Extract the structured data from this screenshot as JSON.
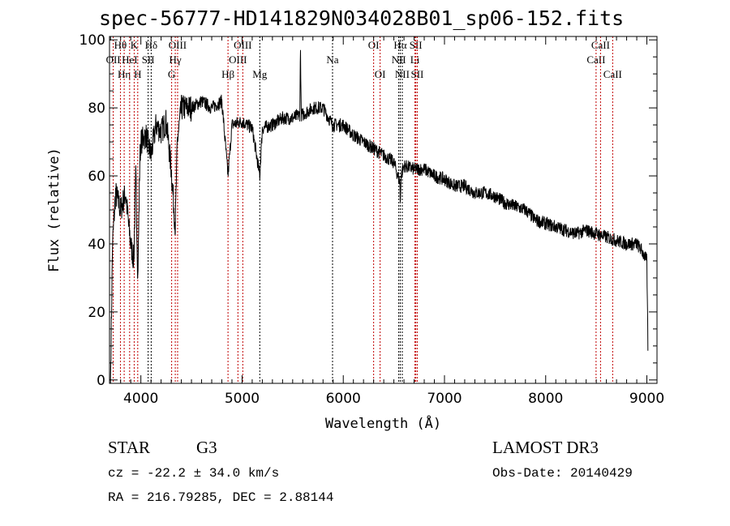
{
  "chart_data": {
    "type": "line",
    "title": "spec-56777-HD141829N034028B01_sp06-152.fits",
    "xlabel": "Wavelength (Å)",
    "ylabel": "Flux (relative)",
    "xlim": [
      3690,
      9100
    ],
    "ylim": [
      -1,
      101
    ],
    "xticks": [
      4000,
      5000,
      6000,
      7000,
      8000,
      9000
    ],
    "yticks": [
      0,
      20,
      40,
      60,
      80,
      100
    ],
    "series": [
      {
        "name": "spectrum",
        "x": [
          3690,
          3700,
          3710,
          3720,
          3750,
          3800,
          3850,
          3880,
          3900,
          3930,
          3950,
          3970,
          3990,
          4000,
          4050,
          4100,
          4150,
          4200,
          4250,
          4300,
          4340,
          4360,
          4400,
          4500,
          4600,
          4700,
          4800,
          4861,
          4900,
          5000,
          5100,
          5175,
          5200,
          5300,
          5400,
          5500,
          5570,
          5577,
          5585,
          5600,
          5700,
          5800,
          5894,
          6000,
          6100,
          6200,
          6300,
          6400,
          6500,
          6560,
          6563,
          6570,
          6600,
          6700,
          6800,
          6900,
          7000,
          7100,
          7200,
          7300,
          7400,
          7500,
          7600,
          7700,
          7800,
          7900,
          8000,
          8100,
          8200,
          8300,
          8400,
          8500,
          8600,
          8700,
          8800,
          8900,
          8950,
          9000,
          9010
        ],
        "y": [
          0,
          0,
          20,
          40,
          55,
          50,
          55,
          45,
          40,
          35,
          60,
          30,
          65,
          70,
          72,
          66,
          75,
          73,
          76,
          62,
          45,
          70,
          80,
          80,
          82,
          80,
          82,
          60,
          75,
          76,
          74,
          60,
          74,
          75,
          77,
          77,
          78,
          98,
          78,
          78,
          80,
          80,
          75,
          75,
          72,
          70,
          68,
          66,
          64,
          58,
          50,
          60,
          63,
          62,
          62,
          60,
          59,
          57,
          57,
          55,
          55,
          54,
          52,
          51,
          50,
          47,
          46,
          45,
          44,
          43,
          44,
          43,
          42,
          41,
          40,
          40,
          38,
          35,
          10
        ]
      }
    ],
    "lines": [
      {
        "label": "OII",
        "w": 3727,
        "row": 2,
        "color": "#c00000"
      },
      {
        "label": "Hθ",
        "w": 3798,
        "row": 1,
        "color": "#c00000"
      },
      {
        "label": "Hη",
        "w": 3835,
        "row": 3,
        "color": "#c00000"
      },
      {
        "label": "HeI",
        "w": 3889,
        "row": 2,
        "color": "#c00000"
      },
      {
        "label": "K",
        "w": 3934,
        "row": 1,
        "color": "#c00000"
      },
      {
        "label": "H",
        "w": 3969,
        "row": 3,
        "color": "#c00000"
      },
      {
        "label": "SII",
        "w": 4072,
        "row": 2,
        "color": "#000000"
      },
      {
        "label": "Hδ",
        "w": 4102,
        "row": 1,
        "color": "#000000"
      },
      {
        "label": "G",
        "w": 4304,
        "row": 3,
        "color": "#c00000"
      },
      {
        "label": "Hγ",
        "w": 4340,
        "row": 2,
        "color": "#c00000"
      },
      {
        "label": "OIII",
        "w": 4363,
        "row": 1,
        "color": "#c00000"
      },
      {
        "label": "Hβ",
        "w": 4861,
        "row": 3,
        "color": "#c00000"
      },
      {
        "label": "OIII",
        "w": 4959,
        "row": 2,
        "color": "#c00000"
      },
      {
        "label": "OIII",
        "w": 5007,
        "row": 1,
        "color": "#c00000"
      },
      {
        "label": "Mg",
        "w": 5175,
        "row": 3,
        "color": "#000000"
      },
      {
        "label": "Na",
        "w": 5894,
        "row": 2,
        "color": "#000000"
      },
      {
        "label": "OI",
        "w": 6300,
        "row": 1,
        "color": "#c00000"
      },
      {
        "label": "OI",
        "w": 6364,
        "row": 3,
        "color": "#c00000"
      },
      {
        "label": "NII",
        "w": 6548,
        "row": 2,
        "color": "#000000"
      },
      {
        "label": "Hα",
        "w": 6563,
        "row": 1,
        "color": "#000000"
      },
      {
        "label": "NII",
        "w": 6583,
        "row": 3,
        "color": "#000000"
      },
      {
        "label": "Li",
        "w": 6708,
        "row": 2,
        "color": "#c00000"
      },
      {
        "label": "SII",
        "w": 6717,
        "row": 1,
        "color": "#c00000"
      },
      {
        "label": "SII",
        "w": 6731,
        "row": 3,
        "color": "#c00000"
      },
      {
        "label": "CaII",
        "w": 8498,
        "row": 2,
        "color": "#c00000"
      },
      {
        "label": "CaII",
        "w": 8542,
        "row": 1,
        "color": "#c00000"
      },
      {
        "label": "CaII",
        "w": 8662,
        "row": 3,
        "color": "#c00000"
      }
    ]
  },
  "info": {
    "class": "STAR",
    "subclass": "G3",
    "survey": "LAMOST DR3",
    "cz": "cz = -22.2 ± 34.0 km/s",
    "obsdate": "Obs-Date: 20140429",
    "radec": "RA = 216.79285, DEC =   2.88144"
  }
}
